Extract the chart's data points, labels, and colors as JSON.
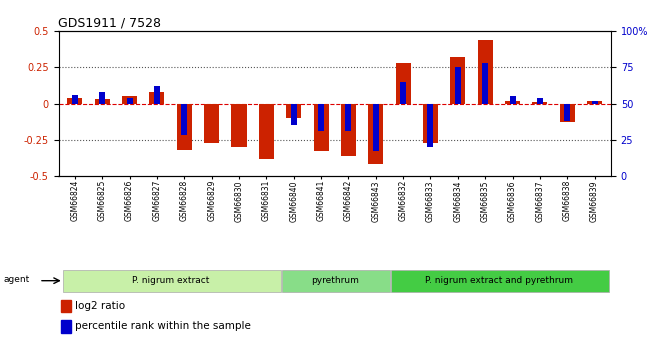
{
  "title": "GDS1911 / 7528",
  "samples": [
    "GSM66824",
    "GSM66825",
    "GSM66826",
    "GSM66827",
    "GSM66828",
    "GSM66829",
    "GSM66830",
    "GSM66831",
    "GSM66840",
    "GSM66841",
    "GSM66842",
    "GSM66843",
    "GSM66832",
    "GSM66833",
    "GSM66834",
    "GSM66835",
    "GSM66836",
    "GSM66837",
    "GSM66838",
    "GSM66839"
  ],
  "log2_ratio": [
    0.04,
    0.03,
    0.05,
    0.08,
    -0.32,
    -0.27,
    -0.3,
    -0.38,
    -0.1,
    -0.33,
    -0.36,
    -0.42,
    0.28,
    -0.27,
    0.32,
    0.44,
    0.02,
    0.01,
    -0.13,
    0.02
  ],
  "percentile": [
    56,
    58,
    54,
    62,
    28,
    50,
    50,
    50,
    35,
    31,
    31,
    17,
    65,
    20,
    75,
    78,
    55,
    54,
    38,
    52
  ],
  "groups": [
    {
      "label": "P. nigrum extract",
      "start": 0,
      "end": 8,
      "color": "#c8f0a8"
    },
    {
      "label": "pyrethrum",
      "start": 8,
      "end": 12,
      "color": "#88dd88"
    },
    {
      "label": "P. nigrum extract and pyrethrum",
      "start": 12,
      "end": 20,
      "color": "#44cc44"
    }
  ],
  "ylim_left": [
    -0.5,
    0.5
  ],
  "ylim_right": [
    0,
    100
  ],
  "yticks_left": [
    -0.5,
    -0.25,
    0.0,
    0.25,
    0.5
  ],
  "ytick_labels_left": [
    "-0.5",
    "-0.25",
    "0",
    "0.25",
    "0.5"
  ],
  "yticks_right": [
    0,
    25,
    50,
    75,
    100
  ],
  "ytick_labels_right": [
    "0",
    "25",
    "50",
    "75",
    "100%"
  ],
  "bar_color_red": "#cc2200",
  "bar_color_blue": "#0000cc",
  "hline_color": "#dd0000",
  "dotline_color": "#555555",
  "legend_items": [
    "log2 ratio",
    "percentile rank within the sample"
  ],
  "agent_label": "agent",
  "bar_width": 0.55,
  "blue_bar_width": 0.22
}
